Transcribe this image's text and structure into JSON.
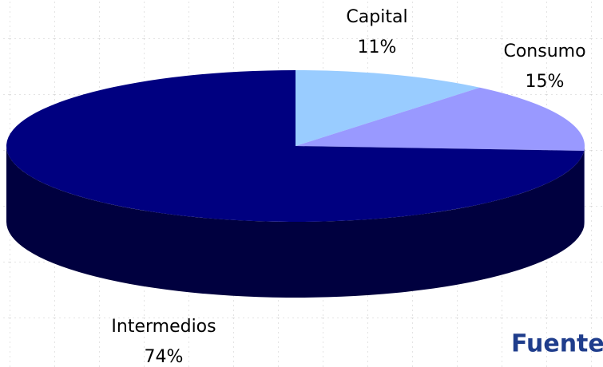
{
  "chart_data": {
    "type": "pie3d",
    "categories": [
      "Capital",
      "Consumo",
      "Intermedios"
    ],
    "values": [
      11,
      15,
      74
    ],
    "value_labels": [
      "11%",
      "15%",
      "74%"
    ],
    "colors": [
      "#99CCFF",
      "#9999FF",
      "#000080"
    ],
    "side_colors": [
      "#5C7A99",
      "#5C5C99",
      "#00003F"
    ],
    "annotation": "Fuente:"
  }
}
